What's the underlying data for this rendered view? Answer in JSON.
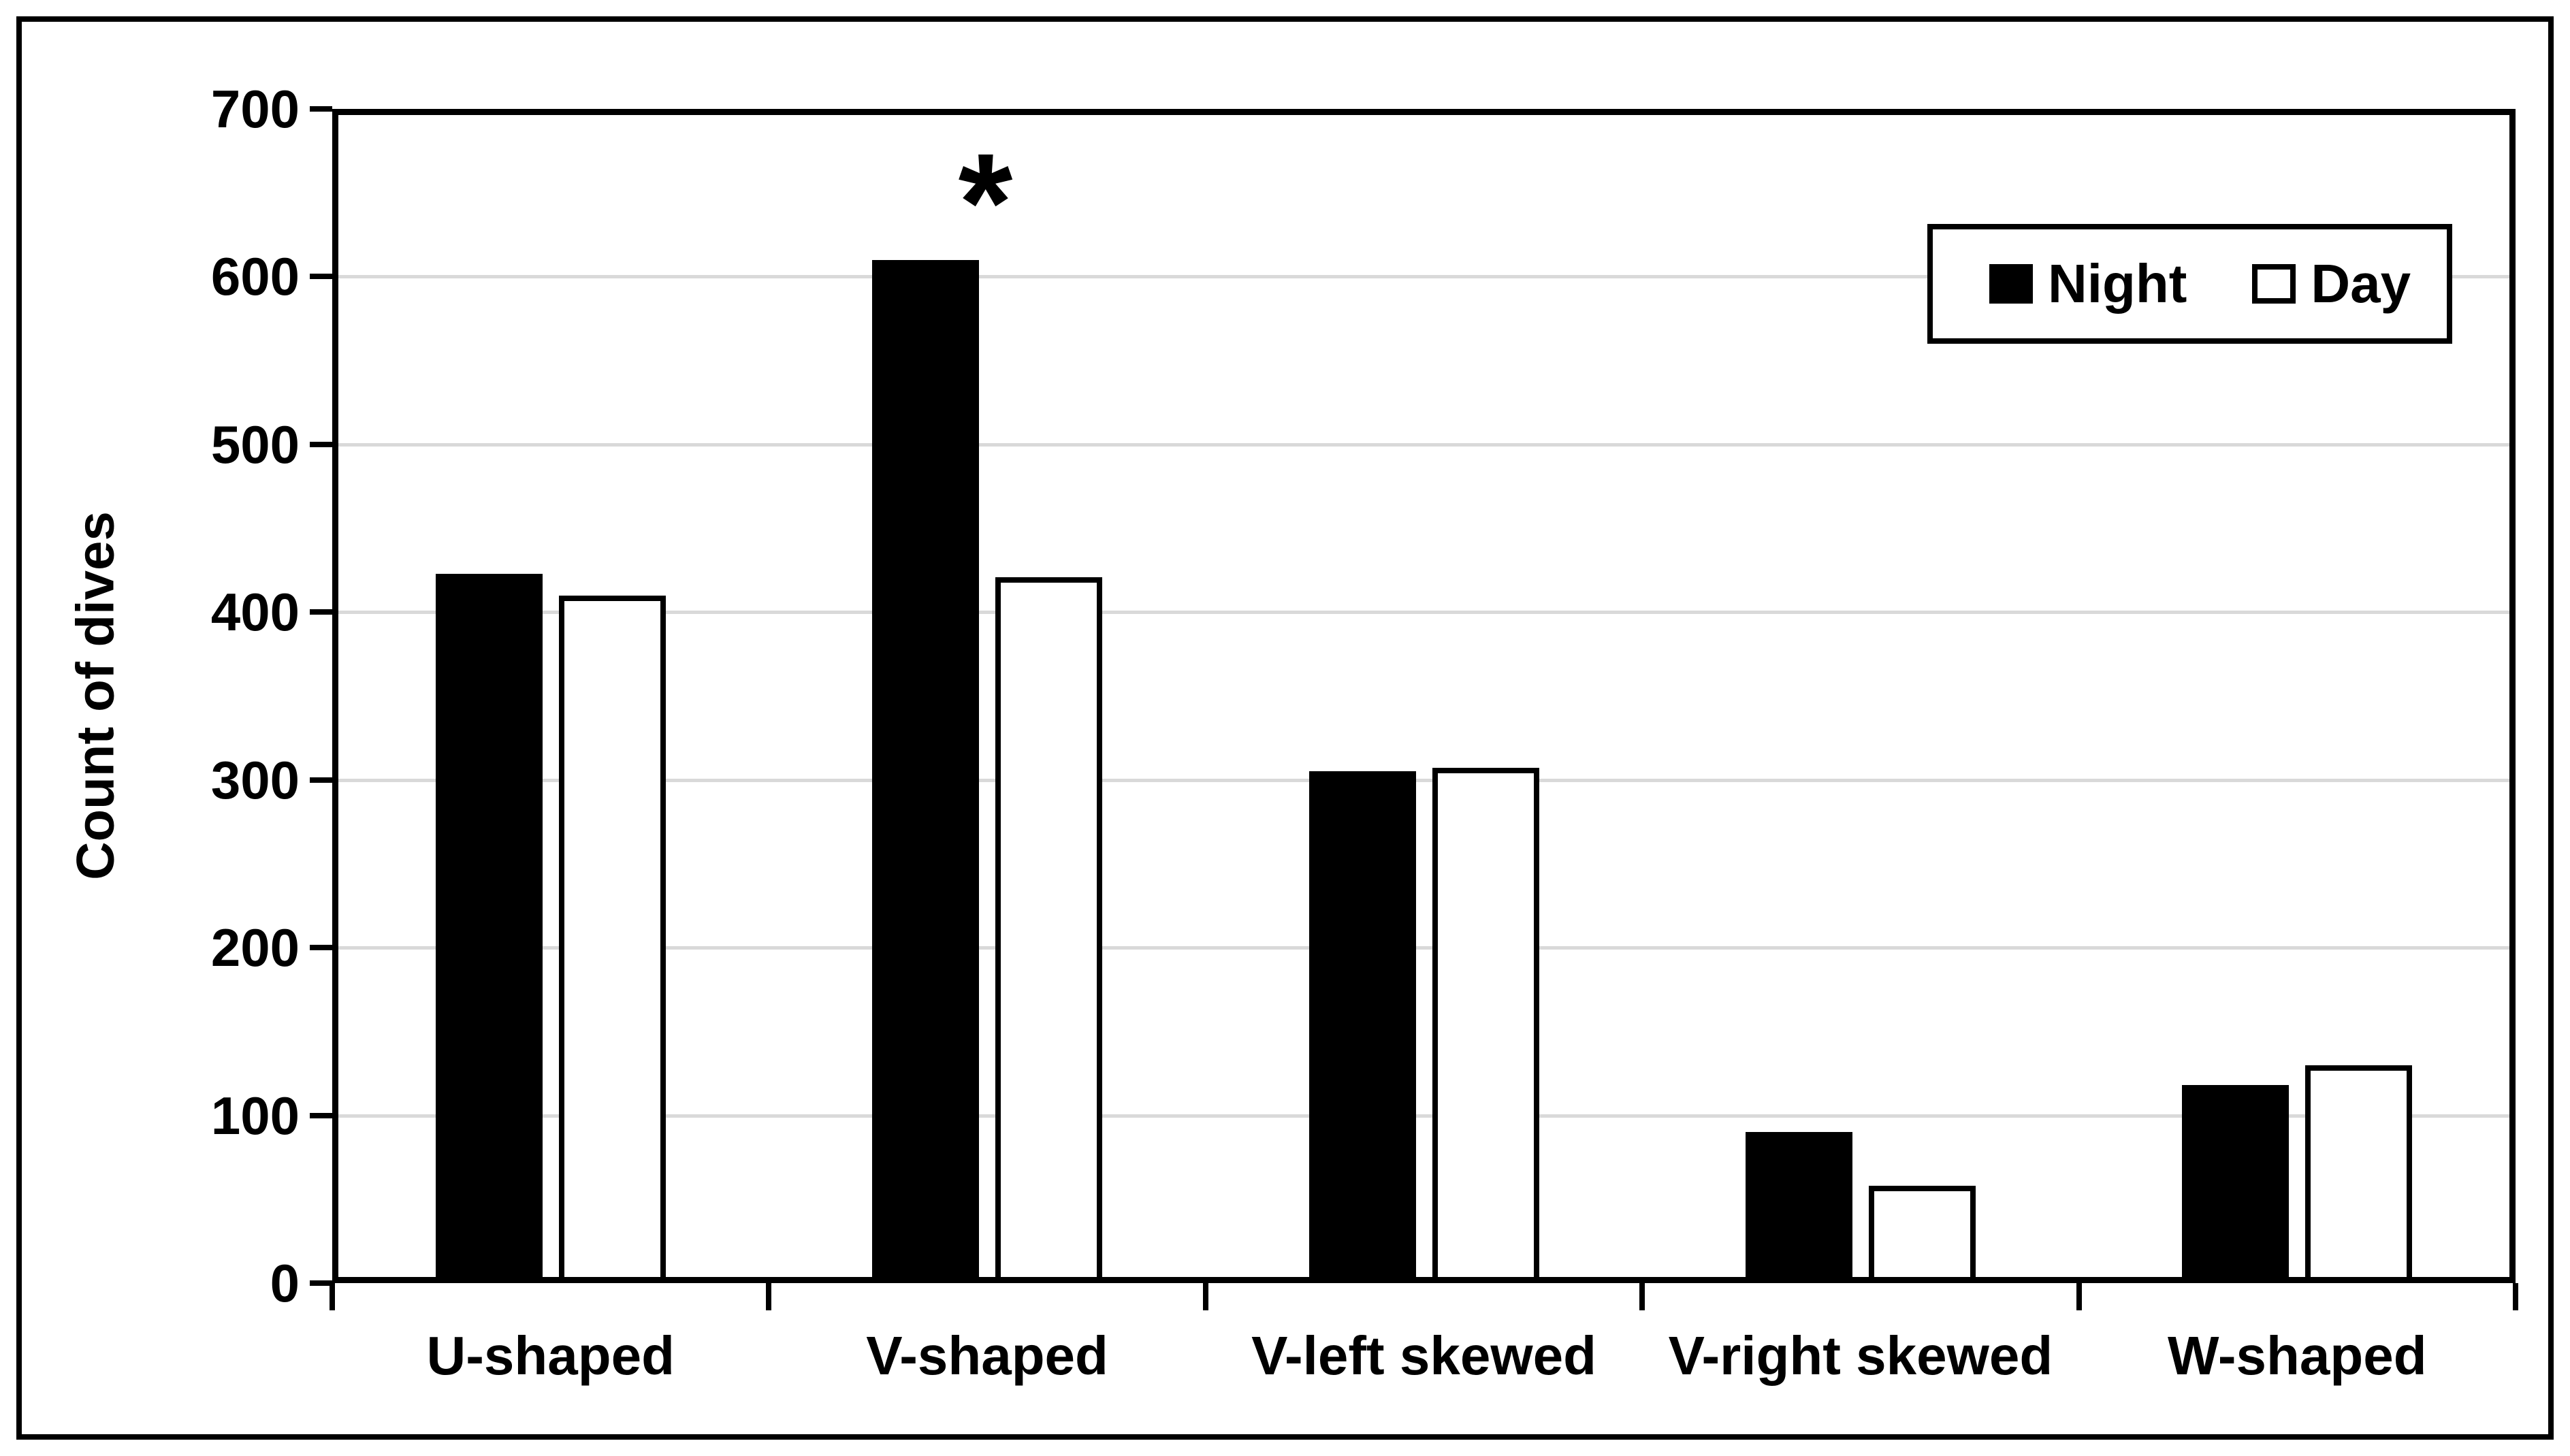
{
  "figure": {
    "background": "#ffffff",
    "border_color": "#000000",
    "gridline_color": "#d9d9d9",
    "axis_color": "#000000"
  },
  "chart_data": {
    "type": "bar",
    "title": "",
    "categories": [
      "U-shaped",
      "V-shaped",
      "V-left skewed",
      "V-right skewed",
      "W-shaped"
    ],
    "series": [
      {
        "name": "Night",
        "fill": "#000000",
        "stroke": "#000000",
        "values": [
          423,
          610,
          305,
          90,
          118
        ]
      },
      {
        "name": "Day",
        "fill": "#ffffff",
        "stroke": "#000000",
        "values": [
          410,
          421,
          307,
          58,
          130
        ]
      }
    ],
    "xlabel": "",
    "ylabel": "Count of dives",
    "ylim": [
      0,
      700
    ],
    "yticks": [
      0,
      100,
      200,
      300,
      400,
      500,
      600,
      700
    ],
    "grid": "horizontal",
    "legend": {
      "position": "top-right-inside-boxed",
      "entries": [
        "Night",
        "Day"
      ]
    },
    "annotation": {
      "symbol": "*",
      "category": "V-shaped",
      "series": "Night",
      "meaning": "significance marker above V-shaped Night bar"
    }
  }
}
